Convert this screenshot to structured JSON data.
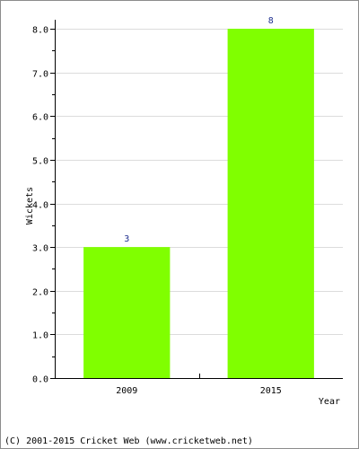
{
  "chart_data": {
    "type": "bar",
    "categories": [
      "2009",
      "2015"
    ],
    "values": [
      3,
      8
    ],
    "data_labels": [
      "3",
      "8"
    ],
    "title": "",
    "xlabel": "Year",
    "ylabel": "Wickets",
    "ylim": [
      0,
      8
    ],
    "yticks": [
      "0.0",
      "1.0",
      "2.0",
      "3.0",
      "4.0",
      "5.0",
      "6.0",
      "7.0",
      "8.0"
    ],
    "bar_color": "#80ff00",
    "grid": true,
    "legend": "none"
  },
  "footer": {
    "copyright": "(C) 2001-2015 Cricket Web (www.cricketweb.net)"
  }
}
